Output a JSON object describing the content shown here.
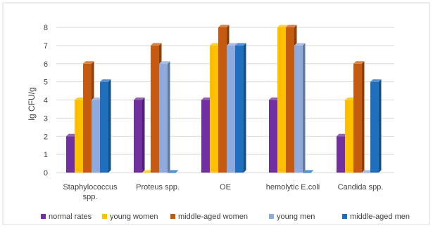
{
  "chart_data": {
    "type": "bar",
    "ylabel": "lg CFU/g",
    "ylim": [
      0,
      8
    ],
    "yticks": [
      0,
      1,
      2,
      3,
      4,
      5,
      6,
      7,
      8
    ],
    "grid": true,
    "legend": "bottom",
    "categories": [
      [
        "Staphylococcus",
        "spp."
      ],
      [
        "Proteus spp."
      ],
      [
        "OE"
      ],
      [
        "hemolytic E.coli"
      ],
      [
        "Candida spp."
      ]
    ],
    "series": [
      {
        "name": "normal rates",
        "color": "#7030a0",
        "values": [
          2,
          4,
          4,
          4,
          2
        ]
      },
      {
        "name": "young women",
        "color": "#ffc000",
        "values": [
          4,
          0,
          7,
          8,
          4
        ]
      },
      {
        "name": "middle-aged women",
        "color": "#c55a11",
        "values": [
          6,
          7,
          8,
          8,
          6
        ]
      },
      {
        "name": "young men",
        "color": "#8faadc",
        "values": [
          4,
          6,
          7,
          7,
          0
        ]
      },
      {
        "name": "middle-aged men",
        "color": "#1f6fbf",
        "values": [
          5,
          0,
          7,
          0,
          5
        ]
      }
    ]
  }
}
